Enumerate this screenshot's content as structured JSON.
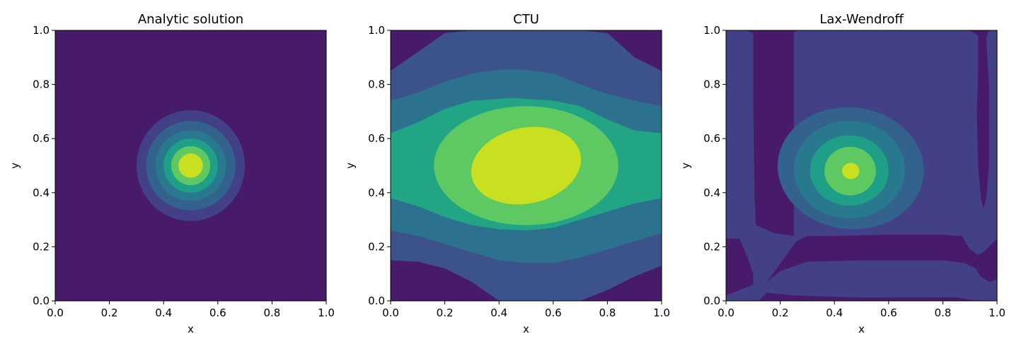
{
  "chart_data": [
    {
      "type": "contour",
      "title": "Analytic solution",
      "xlabel": "x",
      "ylabel": "y",
      "xlim": [
        0,
        1
      ],
      "ylim": [
        0,
        1
      ],
      "xticks": [
        "0.0",
        "0.2",
        "0.4",
        "0.6",
        "0.8",
        "1.0"
      ],
      "yticks": [
        "0.0",
        "0.2",
        "0.4",
        "0.6",
        "0.8",
        "1.0"
      ],
      "grid": false,
      "legend": "none",
      "background_color": "#481B6A",
      "levels": [
        {
          "color": "#424086",
          "shape": "ellipse",
          "cx": 0.5,
          "cy": 0.5,
          "rx": 0.2,
          "ry": 0.205
        },
        {
          "color": "#33638D",
          "shape": "ellipse",
          "cx": 0.5,
          "cy": 0.5,
          "rx": 0.165,
          "ry": 0.165
        },
        {
          "color": "#29798E",
          "shape": "ellipse",
          "cx": 0.5,
          "cy": 0.5,
          "rx": 0.13,
          "ry": 0.13
        },
        {
          "color": "#1F9F88",
          "shape": "ellipse",
          "cx": 0.5,
          "cy": 0.5,
          "rx": 0.1,
          "ry": 0.1
        },
        {
          "color": "#5EC962",
          "shape": "ellipse",
          "cx": 0.5,
          "cy": 0.5,
          "rx": 0.072,
          "ry": 0.072
        },
        {
          "color": "#C8E020",
          "shape": "ellipse",
          "cx": 0.5,
          "cy": 0.5,
          "rx": 0.045,
          "ry": 0.045
        }
      ]
    },
    {
      "type": "contour",
      "title": "CTU",
      "xlabel": "x",
      "ylabel": "y",
      "xlim": [
        0,
        1
      ],
      "ylim": [
        0,
        1
      ],
      "xticks": [
        "0.0",
        "0.2",
        "0.4",
        "0.6",
        "0.8",
        "1.0"
      ],
      "yticks": [
        "0.0",
        "0.2",
        "0.4",
        "0.6",
        "0.8",
        "1.0"
      ],
      "grid": false,
      "legend": "none",
      "background_color": "#481B6A",
      "levels": [
        {
          "color": "#3B528B",
          "shape": "polygon",
          "points": [
            [
              0,
              0.85
            ],
            [
              0.1,
              0.92
            ],
            [
              0.2,
              0.99
            ],
            [
              0.3,
              1
            ],
            [
              0.7,
              1
            ],
            [
              0.8,
              0.99
            ],
            [
              0.9,
              0.9
            ],
            [
              1,
              0.85
            ],
            [
              1,
              0.13
            ],
            [
              0.9,
              0.09
            ],
            [
              0.8,
              0.04
            ],
            [
              0.7,
              0
            ],
            [
              0.4,
              0
            ],
            [
              0.3,
              0.07
            ],
            [
              0.2,
              0.12
            ],
            [
              0.1,
              0.145
            ],
            [
              0,
              0.15
            ]
          ]
        },
        {
          "color": "#2C728E",
          "shape": "polygon",
          "points": [
            [
              0,
              0.74
            ],
            [
              0.1,
              0.77
            ],
            [
              0.2,
              0.81
            ],
            [
              0.3,
              0.84
            ],
            [
              0.4,
              0.855
            ],
            [
              0.5,
              0.855
            ],
            [
              0.6,
              0.84
            ],
            [
              0.7,
              0.8
            ],
            [
              0.8,
              0.765
            ],
            [
              0.9,
              0.74
            ],
            [
              1,
              0.72
            ],
            [
              1,
              0.25
            ],
            [
              0.9,
              0.22
            ],
            [
              0.8,
              0.19
            ],
            [
              0.7,
              0.16
            ],
            [
              0.6,
              0.14
            ],
            [
              0.5,
              0.14
            ],
            [
              0.4,
              0.15
            ],
            [
              0.3,
              0.18
            ],
            [
              0.2,
              0.21
            ],
            [
              0.1,
              0.24
            ],
            [
              0,
              0.26
            ]
          ]
        },
        {
          "color": "#21A585",
          "shape": "polygon",
          "points": [
            [
              0,
              0.62
            ],
            [
              0.1,
              0.66
            ],
            [
              0.2,
              0.71
            ],
            [
              0.3,
              0.74
            ],
            [
              0.45,
              0.75
            ],
            [
              0.6,
              0.74
            ],
            [
              0.7,
              0.72
            ],
            [
              0.8,
              0.67
            ],
            [
              0.9,
              0.63
            ],
            [
              1,
              0.62
            ],
            [
              1,
              0.38
            ],
            [
              0.9,
              0.36
            ],
            [
              0.8,
              0.33
            ],
            [
              0.7,
              0.3
            ],
            [
              0.6,
              0.27
            ],
            [
              0.5,
              0.26
            ],
            [
              0.4,
              0.265
            ],
            [
              0.3,
              0.28
            ],
            [
              0.2,
              0.31
            ],
            [
              0.1,
              0.35
            ],
            [
              0,
              0.38
            ]
          ]
        },
        {
          "color": "#5EC962",
          "shape": "ellipse",
          "cx": 0.5,
          "cy": 0.5,
          "rx": 0.34,
          "ry": 0.22
        },
        {
          "color": "#C8E020",
          "shape": "ellipse",
          "cx": 0.5,
          "cy": 0.5,
          "rx": 0.205,
          "ry": 0.14,
          "rotate": -12
        }
      ]
    },
    {
      "type": "contour",
      "title": "Lax-Wendroff",
      "xlabel": "x",
      "ylabel": "y",
      "xlim": [
        0,
        1
      ],
      "ylim": [
        0,
        1
      ],
      "xticks": [
        "0.0",
        "0.2",
        "0.4",
        "0.6",
        "0.8",
        "1.0"
      ],
      "yticks": [
        "0.0",
        "0.2",
        "0.4",
        "0.6",
        "0.8",
        "1.0"
      ],
      "grid": false,
      "legend": "none",
      "background_color": "#424086",
      "levels": [
        {
          "color": "#481B6A",
          "shape": "polygon",
          "points": [
            [
              0.07,
              1
            ],
            [
              0.1,
              0.99
            ],
            [
              0.1,
              0.75
            ],
            [
              0.105,
              0.4
            ],
            [
              0.11,
              0.28
            ],
            [
              0.18,
              0.25
            ],
            [
              0.25,
              0.24
            ],
            [
              0.25,
              0.99
            ],
            [
              0.26,
              1
            ]
          ]
        },
        {
          "color": "#481B6A",
          "shape": "polygon",
          "points": [
            [
              0,
              0.23
            ],
            [
              0.05,
              0.23
            ],
            [
              0.08,
              0.16
            ],
            [
              0.1,
              0.1
            ],
            [
              0.1,
              0.06
            ],
            [
              0.05,
              0.04
            ],
            [
              0,
              0.02
            ]
          ]
        },
        {
          "color": "#481B6A",
          "shape": "polygon",
          "points": [
            [
              0.26,
              0.22
            ],
            [
              0.3,
              0.24
            ],
            [
              0.4,
              0.24
            ],
            [
              0.6,
              0.245
            ],
            [
              0.8,
              0.245
            ],
            [
              0.87,
              0.24
            ],
            [
              0.9,
              0.19
            ],
            [
              0.93,
              0.17
            ],
            [
              0.95,
              0.18
            ],
            [
              0.97,
              0.2
            ],
            [
              1,
              0.23
            ],
            [
              1,
              0.08
            ],
            [
              0.97,
              0.07
            ],
            [
              0.94,
              0.09
            ],
            [
              0.92,
              0.12
            ],
            [
              0.88,
              0.14
            ],
            [
              0.8,
              0.15
            ],
            [
              0.5,
              0.15
            ],
            [
              0.3,
              0.145
            ],
            [
              0.2,
              0.11
            ],
            [
              0.15,
              0.07
            ]
          ]
        },
        {
          "color": "#481B6A",
          "shape": "polygon",
          "points": [
            [
              0.9,
              1
            ],
            [
              0.93,
              0.98
            ],
            [
              0.93,
              0.85
            ],
            [
              0.925,
              0.7
            ],
            [
              0.93,
              0.5
            ],
            [
              0.94,
              0.38
            ],
            [
              0.95,
              0.34
            ],
            [
              0.96,
              0.38
            ],
            [
              0.97,
              0.5
            ],
            [
              0.97,
              0.8
            ],
            [
              0.96,
              0.97
            ],
            [
              0.97,
              1
            ]
          ]
        },
        {
          "color": "#481B6A",
          "shape": "polygon",
          "points": [
            [
              0.12,
              0
            ],
            [
              0.15,
              0.03
            ],
            [
              0.25,
              0.02
            ],
            [
              0.5,
              0.012
            ],
            [
              0.85,
              0.013
            ],
            [
              0.93,
              0
            ],
            [
              1,
              0
            ]
          ]
        },
        {
          "color": "#33638D",
          "shape": "ellipse",
          "cx": 0.46,
          "cy": 0.49,
          "rx": 0.27,
          "ry": 0.225,
          "rotate": 6
        },
        {
          "color": "#29798E",
          "shape": "ellipse",
          "cx": 0.455,
          "cy": 0.485,
          "rx": 0.205,
          "ry": 0.18
        },
        {
          "color": "#1F9F88",
          "shape": "ellipse",
          "cx": 0.455,
          "cy": 0.482,
          "rx": 0.145,
          "ry": 0.13
        },
        {
          "color": "#5EC962",
          "shape": "ellipse",
          "cx": 0.458,
          "cy": 0.48,
          "rx": 0.095,
          "ry": 0.09
        },
        {
          "color": "#C8E020",
          "shape": "ellipse",
          "cx": 0.46,
          "cy": 0.48,
          "rx": 0.032,
          "ry": 0.03
        }
      ]
    }
  ]
}
